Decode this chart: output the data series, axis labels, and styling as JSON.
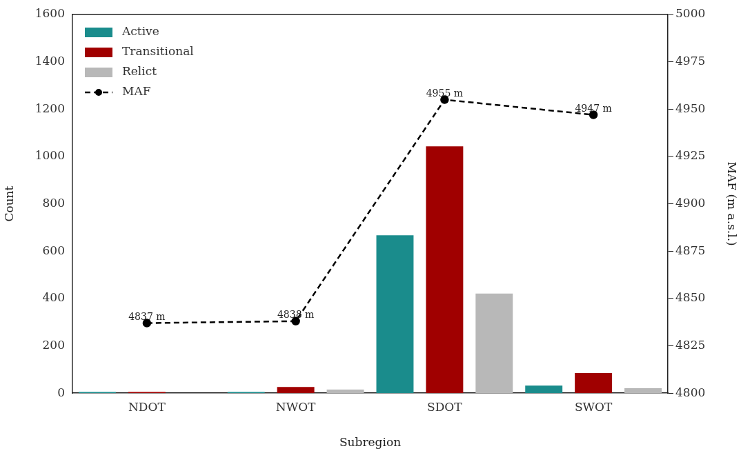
{
  "chart_data": {
    "type": "bar",
    "xlabel": "Subregion",
    "ylabel": "Count",
    "y2label": "MAF (m a.s.l.)",
    "categories": [
      "NDOT",
      "NWOT",
      "SDOT",
      "SWOT"
    ],
    "series": [
      {
        "name": "Active",
        "color": "#1a8c8c",
        "values": [
          5,
          5,
          667,
          32
        ]
      },
      {
        "name": "Transitional",
        "color": "#a00000",
        "values": [
          5,
          26,
          1043,
          85
        ]
      },
      {
        "name": "Relict",
        "color": "#b8b8b8",
        "values": [
          0,
          15,
          421,
          21
        ]
      },
      {
        "name": "MAF",
        "type": "line",
        "axis": "y2",
        "color": "#000000",
        "marker": "circle",
        "line_style": "dashed",
        "values": [
          4837,
          4838,
          4955,
          4947
        ],
        "value_labels": [
          "4837 m",
          "4838 m",
          "4955 m",
          "4947 m"
        ]
      }
    ],
    "ylim": [
      0,
      1600
    ],
    "yticks": [
      0,
      200,
      400,
      600,
      800,
      1000,
      1200,
      1400,
      1600
    ],
    "y2lim": [
      4800,
      5000
    ],
    "y2ticks": [
      4800,
      4825,
      4850,
      4875,
      4900,
      4925,
      4950,
      4975,
      5000
    ],
    "legend": "top left",
    "grid": false
  }
}
